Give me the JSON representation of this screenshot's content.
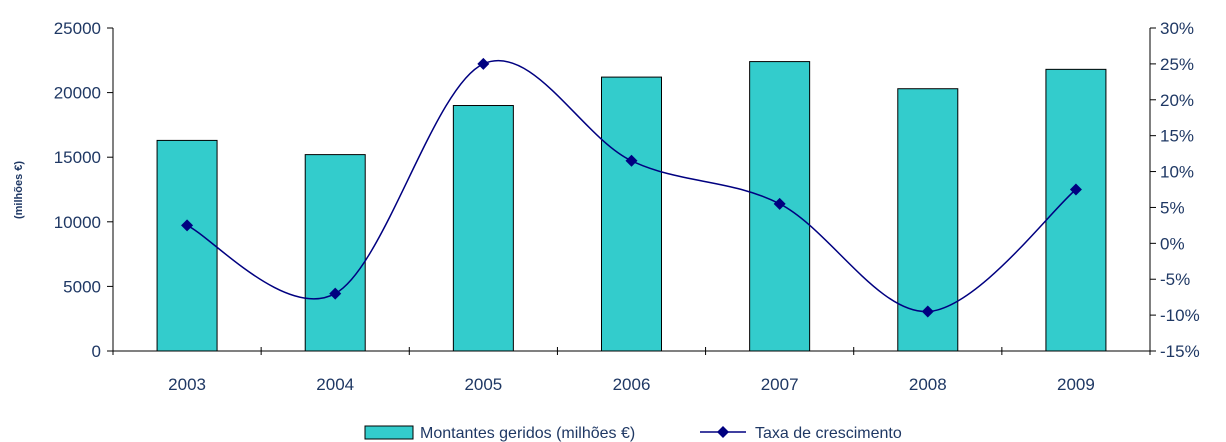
{
  "chart_data": {
    "type": "bar",
    "categories": [
      "2003",
      "2004",
      "2005",
      "2006",
      "2007",
      "2008",
      "2009"
    ],
    "series": [
      {
        "name": "Montantes geridos (milhões €)",
        "type": "bar",
        "axis": "left",
        "color": "#33cccc",
        "values": [
          16300,
          15200,
          19000,
          21200,
          22400,
          20300,
          21800
        ]
      },
      {
        "name": "Taxa de crescimento",
        "type": "line",
        "axis": "right",
        "color": "#000080",
        "marker": "diamond",
        "smooth": true,
        "values": [
          2.5,
          -7,
          25,
          11.5,
          5.5,
          -9.5,
          7.5
        ]
      }
    ],
    "ylabel": "(milhões €)",
    "ylim": [
      0,
      25000
    ],
    "yticks": [
      "0",
      "5000",
      "10000",
      "15000",
      "20000",
      "25000"
    ],
    "y2lim": [
      -15,
      30
    ],
    "y2ticks": [
      "-15%",
      "-10%",
      "-5%",
      "0%",
      "5%",
      "10%",
      "15%",
      "20%",
      "25%",
      "30%"
    ],
    "grid": false,
    "legend": "bottom-center"
  }
}
